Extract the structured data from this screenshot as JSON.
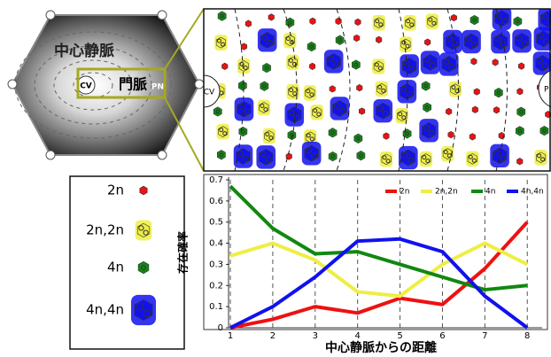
{
  "chart_data": {
    "type": "line",
    "y_label": "存在確率",
    "x_label": "中心静脈からの距離",
    "x": [
      1,
      2,
      3,
      4,
      5,
      6,
      7,
      8
    ],
    "xlim": [
      1,
      8.35
    ],
    "xticks": [
      1,
      2,
      3,
      4,
      5,
      6,
      7,
      8
    ],
    "ylim": [
      0,
      0.7
    ],
    "yticks": [
      0,
      0.1,
      0.2,
      0.3,
      0.4,
      0.5,
      0.6,
      0.7
    ],
    "grid": "x-dashed",
    "legend": "top-right",
    "series": [
      {
        "name": "2n",
        "color": "#ee1111",
        "values": [
          0,
          0.04,
          0.1,
          0.07,
          0.14,
          0.11,
          0.28,
          0.5
        ]
      },
      {
        "name": "2n,2n",
        "color": "#eeee44",
        "values": [
          0.34,
          0.4,
          0.32,
          0.17,
          0.15,
          0.3,
          0.4,
          0.3
        ]
      },
      {
        "name": "4n",
        "color": "#118811",
        "values": [
          0.67,
          0.47,
          0.35,
          0.36,
          0.3,
          0.24,
          0.18,
          0.2
        ]
      },
      {
        "name": "4n,4n",
        "color": "#1111ee",
        "values": [
          0,
          0.1,
          0.24,
          0.41,
          0.42,
          0.36,
          0.15,
          0
        ]
      }
    ]
  },
  "diagram": {
    "lobule_label": "中心静脈",
    "cv": "CV",
    "portal_label": "門脈",
    "pn": "PN",
    "zoom_cv": "CV",
    "zoom_pn": "P"
  }
}
